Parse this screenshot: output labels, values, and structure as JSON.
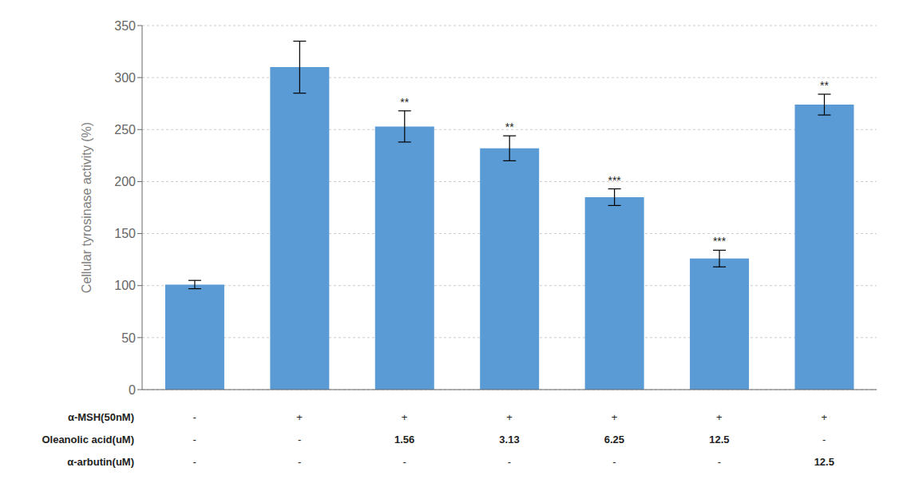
{
  "chart_data": {
    "type": "bar",
    "categories": [
      null,
      null,
      null,
      null,
      null,
      null,
      null
    ],
    "values": [
      101,
      310,
      253,
      232,
      185,
      126,
      274
    ],
    "error_bars": [
      4,
      25,
      15,
      12,
      8,
      8,
      10
    ],
    "color": "#5b9bd5",
    "annotations": [
      null,
      null,
      "**",
      "**",
      "***",
      "***",
      "**"
    ],
    "ylabel": "Cellular tyrosinase activity (%)",
    "ylim": [
      0,
      350
    ],
    "yticks": [
      0,
      50,
      100,
      150,
      200,
      250,
      300,
      350
    ],
    "grid": true,
    "table": {
      "row_labels": [
        "α-MSH(50nM)",
        "Oleanolic acid(uM)",
        "α-arbutin(uM)"
      ],
      "rows": [
        [
          "-",
          "+",
          "+",
          "+",
          "+",
          "+",
          "+"
        ],
        [
          "-",
          "-",
          "1.56",
          "3.13",
          "6.25",
          "12.5",
          "-"
        ],
        [
          "-",
          "-",
          "-",
          "-",
          "-",
          "-",
          "12.5"
        ]
      ]
    }
  }
}
